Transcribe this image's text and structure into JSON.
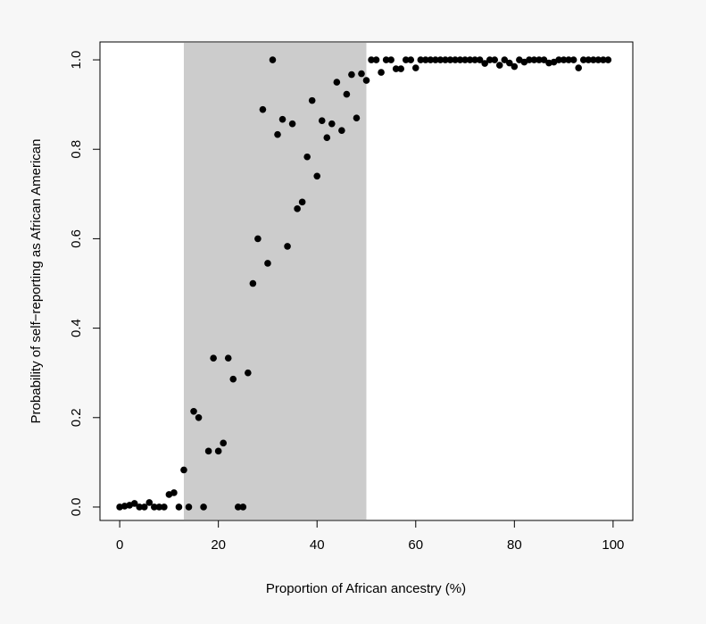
{
  "chart_data": {
    "type": "scatter",
    "title": "",
    "xlabel": "Proportion of African ancestry (%)",
    "ylabel": "Probability of self−reporting as African American",
    "xlim": [
      -4,
      104
    ],
    "ylim": [
      -0.03,
      1.04
    ],
    "xticks": [
      0,
      20,
      40,
      60,
      80,
      100
    ],
    "xtick_labels": [
      "0",
      "20",
      "40",
      "60",
      "80",
      "100"
    ],
    "yticks": [
      0.0,
      0.2,
      0.4,
      0.6,
      0.8,
      1.0
    ],
    "ytick_labels": [
      "0.0",
      "0.2",
      "0.4",
      "0.6",
      "0.8",
      "1.0"
    ],
    "grid": false,
    "legend": "none",
    "shaded_region": {
      "x": [
        13,
        50
      ],
      "color": "#cccccc"
    },
    "point_color": "#000000",
    "series": [
      {
        "points": [
          [
            0,
            0.0
          ],
          [
            1,
            0.002
          ],
          [
            2,
            0.004
          ],
          [
            3,
            0.008
          ],
          [
            4,
            0.0
          ],
          [
            5,
            0.0
          ],
          [
            6,
            0.01
          ],
          [
            7,
            0.0
          ],
          [
            8,
            0.0
          ],
          [
            9,
            0.0
          ],
          [
            10,
            0.028
          ],
          [
            11,
            0.032
          ],
          [
            12,
            0.0
          ],
          [
            13,
            0.083
          ],
          [
            14,
            0.0
          ],
          [
            15,
            0.214
          ],
          [
            16,
            0.2
          ],
          [
            17,
            0.0
          ],
          [
            18,
            0.125
          ],
          [
            19,
            0.333
          ],
          [
            20,
            0.125
          ],
          [
            21,
            0.143
          ],
          [
            22,
            0.333
          ],
          [
            23,
            0.286
          ],
          [
            24,
            0.0
          ],
          [
            25,
            0.0
          ],
          [
            26,
            0.3
          ],
          [
            27,
            0.5
          ],
          [
            28,
            0.6
          ],
          [
            29,
            0.889
          ],
          [
            30,
            0.545
          ],
          [
            31,
            1.0
          ],
          [
            32,
            0.833
          ],
          [
            33,
            0.867
          ],
          [
            34,
            0.583
          ],
          [
            35,
            0.857
          ],
          [
            36,
            0.667
          ],
          [
            37,
            0.682
          ],
          [
            38,
            0.783
          ],
          [
            39,
            0.909
          ],
          [
            40,
            0.74
          ],
          [
            41,
            0.864
          ],
          [
            42,
            0.826
          ],
          [
            43,
            0.857
          ],
          [
            44,
            0.95
          ],
          [
            45,
            0.842
          ],
          [
            46,
            0.923
          ],
          [
            47,
            0.967
          ],
          [
            48,
            0.87
          ],
          [
            49,
            0.969
          ],
          [
            50,
            0.954
          ],
          [
            51,
            1.0
          ],
          [
            52,
            1.0
          ],
          [
            53,
            0.972
          ],
          [
            54,
            1.0
          ],
          [
            55,
            1.0
          ],
          [
            56,
            0.98
          ],
          [
            57,
            0.98
          ],
          [
            58,
            1.0
          ],
          [
            59,
            1.0
          ],
          [
            60,
            0.982
          ],
          [
            61,
            1.0
          ],
          [
            62,
            1.0
          ],
          [
            63,
            1.0
          ],
          [
            64,
            1.0
          ],
          [
            65,
            1.0
          ],
          [
            66,
            1.0
          ],
          [
            67,
            1.0
          ],
          [
            68,
            1.0
          ],
          [
            69,
            1.0
          ],
          [
            70,
            1.0
          ],
          [
            71,
            1.0
          ],
          [
            72,
            1.0
          ],
          [
            73,
            1.0
          ],
          [
            74,
            0.992
          ],
          [
            75,
            1.0
          ],
          [
            76,
            1.0
          ],
          [
            77,
            0.988
          ],
          [
            78,
            1.0
          ],
          [
            79,
            0.993
          ],
          [
            80,
            0.985
          ],
          [
            81,
            1.0
          ],
          [
            82,
            0.995
          ],
          [
            83,
            1.0
          ],
          [
            84,
            1.0
          ],
          [
            85,
            1.0
          ],
          [
            86,
            1.0
          ],
          [
            87,
            0.993
          ],
          [
            88,
            0.995
          ],
          [
            89,
            1.0
          ],
          [
            90,
            1.0
          ],
          [
            91,
            1.0
          ],
          [
            92,
            1.0
          ],
          [
            93,
            0.982
          ],
          [
            94,
            1.0
          ],
          [
            95,
            1.0
          ],
          [
            96,
            1.0
          ],
          [
            97,
            1.0
          ],
          [
            98,
            1.0
          ],
          [
            99,
            1.0
          ]
        ]
      }
    ]
  }
}
